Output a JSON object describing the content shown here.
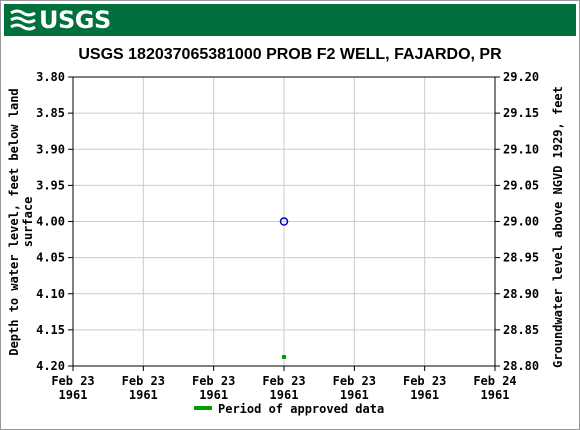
{
  "header": {
    "logo_text": "USGS",
    "logo_icon": "usgs-wave-icon",
    "brand_color": "#00703c"
  },
  "chart_data": {
    "type": "scatter",
    "title": "USGS 182037065381000 PROB F2 WELL, FAJARDO, PR",
    "ylabel_left": "Depth to water level, feet below land surface",
    "ylabel_left_lines": [
      "Depth to water level, feet below land",
      "surface"
    ],
    "ylabel_right": "Groundwater level above NGVD 1929, feet",
    "y_left": {
      "min": 3.8,
      "max": 4.2,
      "inverted": true,
      "ticks": [
        "3.80",
        "3.85",
        "3.90",
        "3.95",
        "4.00",
        "4.05",
        "4.10",
        "4.15",
        "4.20"
      ]
    },
    "y_right": {
      "min": 28.8,
      "max": 29.2,
      "ticks": [
        "29.20",
        "29.15",
        "29.10",
        "29.05",
        "29.00",
        "28.95",
        "28.90",
        "28.85",
        "28.80"
      ]
    },
    "x_ticks": [
      [
        "Feb 23",
        "1961"
      ],
      [
        "Feb 23",
        "1961"
      ],
      [
        "Feb 23",
        "1961"
      ],
      [
        "Feb 23",
        "1961"
      ],
      [
        "Feb 23",
        "1961"
      ],
      [
        "Feb 23",
        "1961"
      ],
      [
        "Feb 24",
        "1961"
      ]
    ],
    "series": [
      {
        "marker": "open-circle",
        "color": "#0000cc",
        "points": [
          {
            "x_fraction_of_day": 0.5,
            "y": 4.0
          }
        ]
      }
    ],
    "approved_period": {
      "color": "#00a000",
      "x_fraction_of_day": 0.5
    },
    "legend": {
      "label": "Period of approved data",
      "color": "#00a000",
      "placement": "bottom-center"
    },
    "grid": true,
    "grid_color": "#cccccc"
  }
}
